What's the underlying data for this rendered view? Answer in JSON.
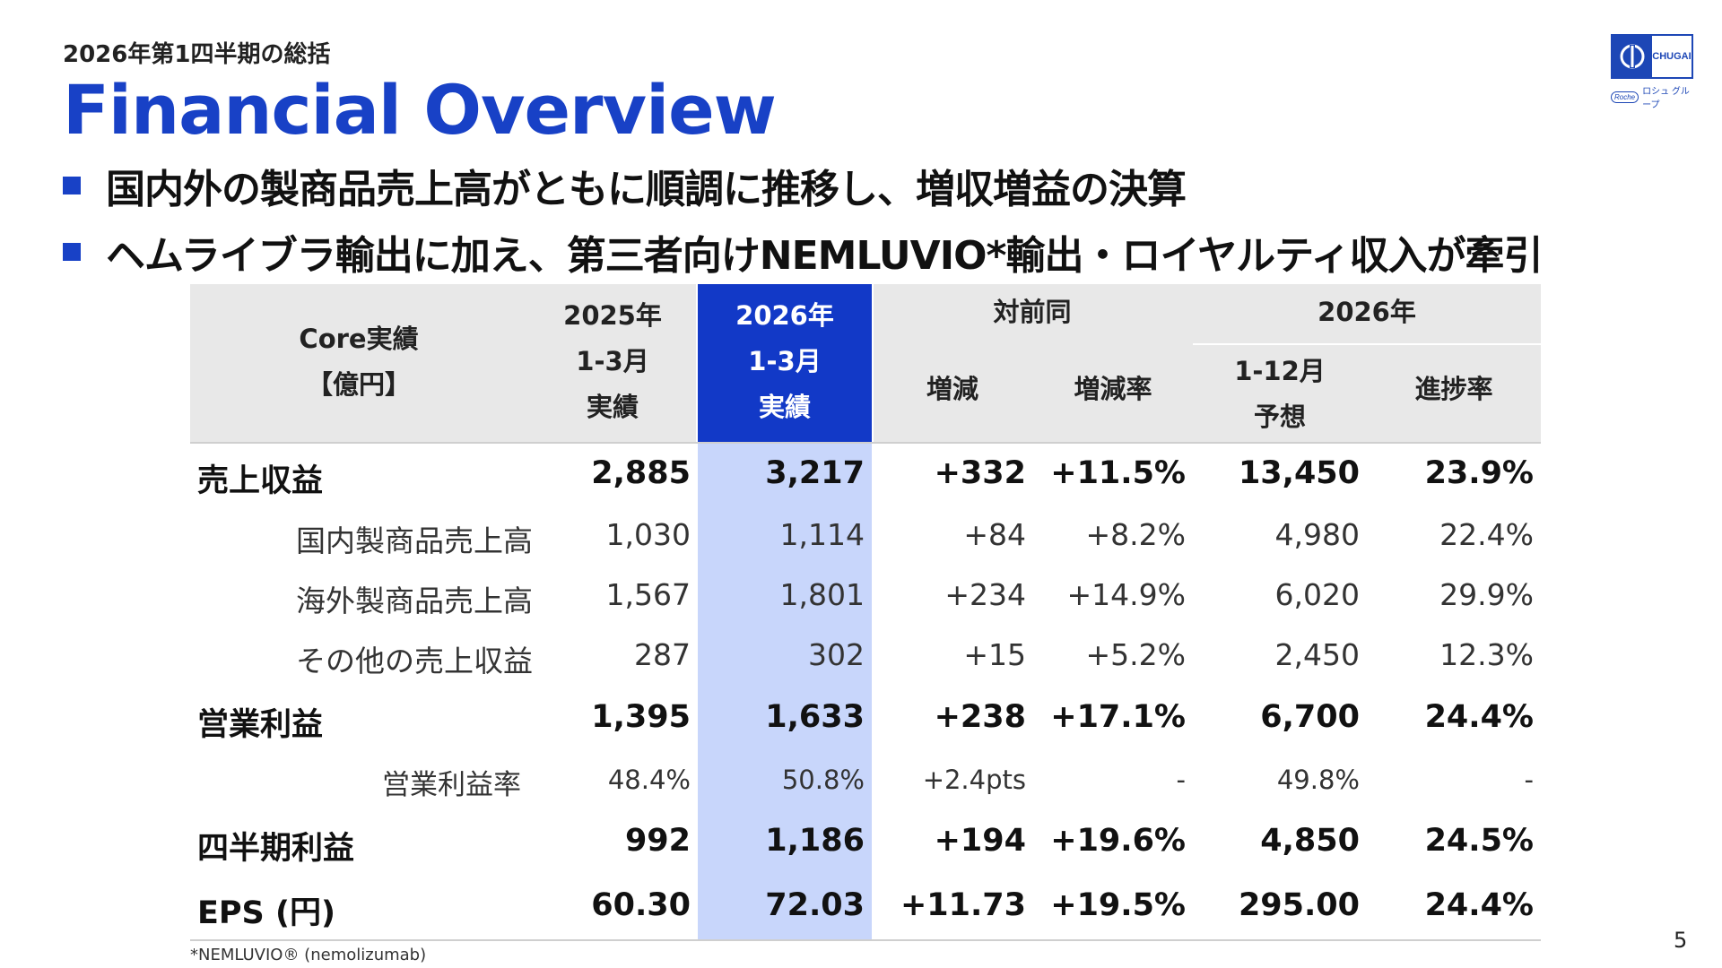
{
  "header": {
    "subtitle": "2026年第1四半期の総括",
    "title": "Financial Overview",
    "bullets": [
      "国内外の製商品売上高がともに順調に推移し、増収増益の決算",
      "ヘムライブラ輸出に加え、第三者向けNEMLUVIO*輸出・ロイヤルティ収入が牽引"
    ]
  },
  "logo": {
    "brand": "CHUGAI",
    "group": "ロシュ グループ",
    "roche": "Roche",
    "mark_color": "#1d47b6"
  },
  "colors": {
    "accent": "#1841c6",
    "highlight_header": "#1239c7",
    "highlight_column": "#c8d6fb",
    "header_bg": "#e8e8e8"
  },
  "table": {
    "corner": [
      "Core実績",
      "【億円】"
    ],
    "col_prev": [
      "2025年",
      "1-3月",
      "実績"
    ],
    "col_curr": [
      "2026年",
      "1-3月",
      "実績"
    ],
    "group_yoy": "対前同",
    "col_change": "増減",
    "col_rate": "増減率",
    "group_fy": "2026年",
    "col_forecast": [
      "1-12月",
      "予想"
    ],
    "col_progress": "進捗率",
    "rows": [
      {
        "label": "売上収益",
        "prev": "2,885",
        "curr": "3,217",
        "change": "+332",
        "rate": "+11.5%",
        "forecast": "13,450",
        "progress": "23.9%"
      },
      {
        "label": "国内製商品売上高",
        "prev": "1,030",
        "curr": "1,114",
        "change": "+84",
        "rate": "+8.2%",
        "forecast": "4,980",
        "progress": "22.4%"
      },
      {
        "label": "海外製商品売上高",
        "prev": "1,567",
        "curr": "1,801",
        "change": "+234",
        "rate": "+14.9%",
        "forecast": "6,020",
        "progress": "29.9%"
      },
      {
        "label": "その他の売上収益",
        "prev": "287",
        "curr": "302",
        "change": "+15",
        "rate": "+5.2%",
        "forecast": "2,450",
        "progress": "12.3%"
      },
      {
        "label": "営業利益",
        "prev": "1,395",
        "curr": "1,633",
        "change": "+238",
        "rate": "+17.1%",
        "forecast": "6,700",
        "progress": "24.4%"
      },
      {
        "label": "営業利益率",
        "prev": "48.4%",
        "curr": "50.8%",
        "change": "+2.4pts",
        "rate": "-",
        "forecast": "49.8%",
        "progress": "-"
      },
      {
        "label": "四半期利益",
        "prev": "992",
        "curr": "1,186",
        "change": "+194",
        "rate": "+19.6%",
        "forecast": "4,850",
        "progress": "24.5%"
      },
      {
        "label": "EPS (円)",
        "prev": "60.30",
        "curr": "72.03",
        "change": "+11.73",
        "rate": "+19.5%",
        "forecast": "295.00",
        "progress": "24.4%"
      }
    ]
  },
  "footnote": "*NEMLUVIO® (nemolizumab)",
  "page_number": "5"
}
